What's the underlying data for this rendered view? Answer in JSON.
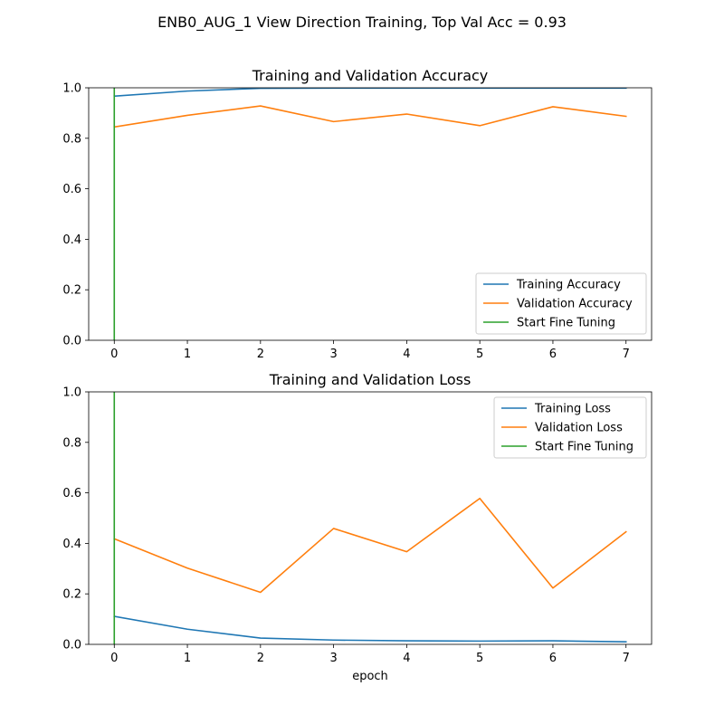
{
  "figure": {
    "suptitle": "ENB0_AUG_1 View Direction Training, Top Val Acc = 0.93"
  },
  "colors": {
    "training": "#1f77b4",
    "validation": "#ff7f0e",
    "fine_tuning": "#2ca02c"
  },
  "chart_data": [
    {
      "type": "line",
      "title": "Training and Validation Accuracy",
      "xlabel": "",
      "ylabel": "",
      "xlim": [
        -0.35,
        7.35
      ],
      "ylim": [
        0.0,
        1.0
      ],
      "xticks": [
        "0",
        "1",
        "2",
        "3",
        "4",
        "5",
        "6",
        "7"
      ],
      "yticks": [
        "0.0",
        "0.2",
        "0.4",
        "0.6",
        "0.8",
        "1.0"
      ],
      "legend_position": "lower right",
      "x": [
        0,
        1,
        2,
        3,
        4,
        5,
        6,
        7
      ],
      "series": [
        {
          "name": "Training Accuracy",
          "color": "#1f77b4",
          "values": [
            0.967,
            0.987,
            0.998,
            0.999,
            0.999,
            0.999,
            0.999,
            0.999
          ]
        },
        {
          "name": "Validation Accuracy",
          "color": "#ff7f0e",
          "values": [
            0.845,
            0.891,
            0.928,
            0.866,
            0.896,
            0.85,
            0.925,
            0.887
          ]
        }
      ],
      "vline": {
        "name": "Start Fine Tuning",
        "color": "#2ca02c",
        "x": 0
      }
    },
    {
      "type": "line",
      "title": "Training and Validation Loss",
      "xlabel": "epoch",
      "ylabel": "",
      "xlim": [
        -0.35,
        7.35
      ],
      "ylim": [
        0.0,
        1.0
      ],
      "xticks": [
        "0",
        "1",
        "2",
        "3",
        "4",
        "5",
        "6",
        "7"
      ],
      "yticks": [
        "0.0",
        "0.2",
        "0.4",
        "0.6",
        "0.8",
        "1.0"
      ],
      "legend_position": "upper right",
      "x": [
        0,
        1,
        2,
        3,
        4,
        5,
        6,
        7
      ],
      "series": [
        {
          "name": "Training Loss",
          "color": "#1f77b4",
          "values": [
            0.111,
            0.06,
            0.025,
            0.017,
            0.014,
            0.013,
            0.014,
            0.01
          ]
        },
        {
          "name": "Validation Loss",
          "color": "#ff7f0e",
          "values": [
            0.418,
            0.302,
            0.206,
            0.459,
            0.367,
            0.578,
            0.223,
            0.446
          ]
        }
      ],
      "vline": {
        "name": "Start Fine Tuning",
        "color": "#2ca02c",
        "x": 0
      }
    }
  ]
}
